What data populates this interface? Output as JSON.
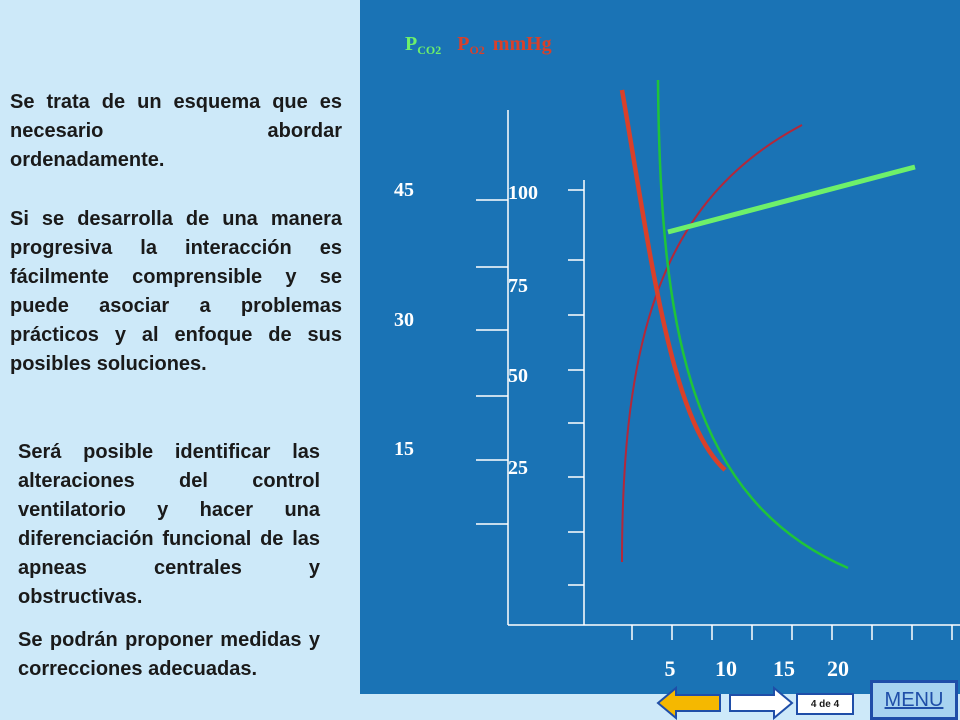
{
  "left": {
    "paragraphs": [
      "Se trata de un esquema que es necesario abordar ordenadamente.",
      "Si se desarrolla de una manera progresiva la interacción es fácilmente comprensible y se puede asociar a problemas prácticos y al enfoque de sus posibles soluciones.",
      "Será posible identificar las alteraciones del control ventilatorio y hacer una diferenciación funcional de las apneas centrales y obstructivas.",
      "Se podrán proponer medidas y correcciones adecuadas."
    ]
  },
  "chart_data": {
    "type": "line",
    "title": "",
    "title_parts": {
      "pco2": "P",
      "pco2_sub": "CO2",
      "po2": "P",
      "po2_sub": "O2",
      "unit": "mmHg"
    },
    "y_left_ticks": [
      "45",
      "30",
      "15"
    ],
    "y_right_ticks": [
      "100",
      "75",
      "50",
      "25"
    ],
    "x_ticks": [
      "5",
      "10",
      "15",
      "20"
    ],
    "series_colors": {
      "red_thick": "#d9402a",
      "green_thin": "#1fc43a",
      "dark_red_thin": "#b3283a",
      "light_green_thick": "#6ef06a"
    }
  },
  "nav": {
    "page_indicator": "4 de 4",
    "menu_label": "MENU"
  },
  "colors": {
    "slide_bg": "#1a73b5",
    "left_bg": "#cde9f9",
    "tick_label": "#ffffff",
    "title_pco2": "#6ef06a",
    "title_po2": "#d9402a"
  }
}
